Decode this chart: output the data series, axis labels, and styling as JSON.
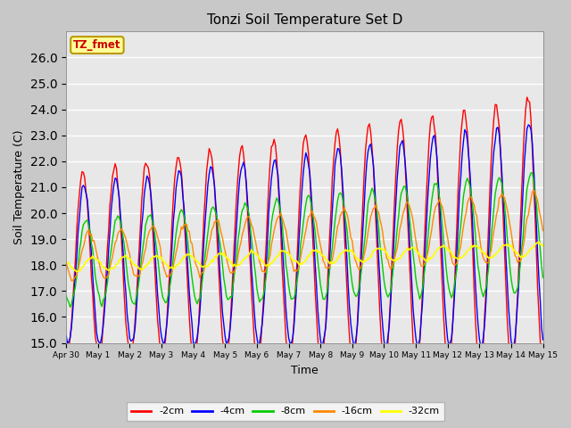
{
  "title": "Tonzi Soil Temperature Set D",
  "xlabel": "Time",
  "ylabel": "Soil Temperature (C)",
  "ylim": [
    15.0,
    27.0
  ],
  "yticks": [
    15.0,
    16.0,
    17.0,
    18.0,
    19.0,
    20.0,
    21.0,
    22.0,
    23.0,
    24.0,
    25.0,
    26.0
  ],
  "colors": {
    "-2cm": "#ff0000",
    "-4cm": "#0000ff",
    "-8cm": "#00cc00",
    "-16cm": "#ff8800",
    "-32cm": "#ffff00"
  },
  "legend_label": "TZ_fmet",
  "legend_bg": "#ffff99",
  "legend_border": "#bb9900",
  "fig_bg": "#c8c8c8",
  "plot_bg": "#e8e8e8",
  "tick_labels": [
    "Apr 30",
    "May 1",
    "May 2",
    "May 3",
    "May 4",
    "May 5",
    "May 6",
    "May 7",
    "May 8",
    "May 9",
    "May 10",
    "May 11",
    "May 12",
    "May 13",
    "May 14",
    "May 15"
  ]
}
